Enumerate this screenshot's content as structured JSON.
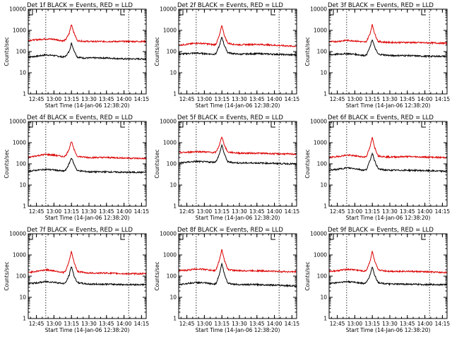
{
  "layout": {
    "rows": 3,
    "cols": 3
  },
  "common": {
    "ylabel": "Counts/sec",
    "xlabel": "Start Time (14-Jan-06 12:38:20)",
    "xticks": [
      "12:45",
      "13:00",
      "13:15",
      "13:30",
      "13:45",
      "14:00",
      "14:15"
    ],
    "yticks": [
      "1",
      "10",
      "100",
      "1000",
      "10000"
    ],
    "ylim": [
      1,
      10000
    ],
    "yscale": "log",
    "xlim": [
      "12:38",
      "14:19"
    ],
    "vlines": [
      "12:53",
      "14:04"
    ],
    "series_colors": {
      "Events": "#000000",
      "LLD": "#dd0000"
    }
  },
  "chart_data": [
    {
      "type": "line",
      "title": "Det 1f BLACK = Events, RED = LLD",
      "x": [
        "12:38",
        "12:45",
        "12:53",
        "13:00",
        "13:08",
        "13:10",
        "13:13",
        "13:15",
        "13:17",
        "13:20",
        "13:25",
        "13:30",
        "13:45",
        "14:00",
        "14:15",
        "14:19"
      ],
      "series": [
        {
          "name": "Events",
          "values": [
            55,
            60,
            70,
            65,
            55,
            60,
            100,
            250,
            120,
            55,
            50,
            50,
            50,
            45,
            45,
            45
          ]
        },
        {
          "name": "LLD",
          "values": [
            340,
            360,
            400,
            380,
            320,
            360,
            700,
            2000,
            800,
            330,
            310,
            300,
            300,
            300,
            300,
            300
          ]
        }
      ]
    },
    {
      "type": "line",
      "title": "Det 2f BLACK = Events, RED = LLD",
      "x": [
        "12:38",
        "12:45",
        "12:53",
        "13:00",
        "13:08",
        "13:10",
        "13:13",
        "13:15",
        "13:17",
        "13:20",
        "13:25",
        "13:30",
        "13:45",
        "14:00",
        "14:15",
        "14:19"
      ],
      "series": [
        {
          "name": "Events",
          "values": [
            75,
            80,
            85,
            80,
            75,
            80,
            200,
            500,
            200,
            90,
            80,
            75,
            80,
            75,
            70,
            70
          ]
        },
        {
          "name": "LLD",
          "values": [
            200,
            220,
            250,
            240,
            210,
            230,
            600,
            1800,
            600,
            250,
            220,
            210,
            220,
            200,
            180,
            180
          ]
        }
      ]
    },
    {
      "type": "line",
      "title": "Det 3f BLACK = Events, RED = LLD",
      "x": [
        "12:38",
        "12:45",
        "12:53",
        "13:00",
        "13:08",
        "13:10",
        "13:13",
        "13:15",
        "13:17",
        "13:20",
        "13:25",
        "13:30",
        "13:45",
        "14:00",
        "14:15",
        "14:19"
      ],
      "series": [
        {
          "name": "Events",
          "values": [
            70,
            75,
            80,
            75,
            65,
            70,
            160,
            380,
            160,
            75,
            70,
            65,
            65,
            60,
            60,
            60
          ]
        },
        {
          "name": "LLD",
          "values": [
            290,
            300,
            340,
            320,
            280,
            300,
            700,
            1900,
            700,
            300,
            280,
            270,
            270,
            260,
            250,
            250
          ]
        }
      ]
    },
    {
      "type": "line",
      "title": "Det 4f BLACK = Events, RED = LLD",
      "x": [
        "12:38",
        "12:45",
        "12:53",
        "13:00",
        "13:08",
        "13:10",
        "13:13",
        "13:15",
        "13:17",
        "13:20",
        "13:25",
        "13:30",
        "13:45",
        "14:00",
        "14:15",
        "14:19"
      ],
      "series": [
        {
          "name": "Events",
          "values": [
            45,
            50,
            55,
            52,
            45,
            50,
            100,
            200,
            100,
            48,
            45,
            42,
            42,
            40,
            40,
            40
          ]
        },
        {
          "name": "LLD",
          "values": [
            200,
            240,
            280,
            260,
            220,
            240,
            500,
            1200,
            500,
            230,
            210,
            200,
            200,
            190,
            180,
            180
          ]
        }
      ]
    },
    {
      "type": "line",
      "title": "Det 5f BLACK = Events, RED = LLD",
      "x": [
        "12:38",
        "12:45",
        "12:53",
        "13:00",
        "13:08",
        "13:10",
        "13:13",
        "13:15",
        "13:17",
        "13:20",
        "13:25",
        "13:30",
        "13:45",
        "14:00",
        "14:15",
        "14:19"
      ],
      "series": [
        {
          "name": "Events",
          "values": [
            110,
            120,
            130,
            125,
            120,
            130,
            300,
            800,
            300,
            125,
            115,
            110,
            110,
            105,
            100,
            100
          ]
        },
        {
          "name": "LLD",
          "values": [
            340,
            350,
            380,
            370,
            340,
            360,
            800,
            2000,
            800,
            360,
            340,
            320,
            320,
            300,
            290,
            290
          ]
        }
      ]
    },
    {
      "type": "line",
      "title": "Det 6f BLACK = Events, RED = LLD",
      "x": [
        "12:38",
        "12:45",
        "12:53",
        "13:00",
        "13:08",
        "13:10",
        "13:13",
        "13:15",
        "13:17",
        "13:20",
        "13:25",
        "13:30",
        "13:45",
        "14:00",
        "14:15",
        "14:19"
      ],
      "series": [
        {
          "name": "Events",
          "values": [
            50,
            55,
            65,
            60,
            50,
            55,
            140,
            330,
            140,
            58,
            52,
            50,
            50,
            48,
            45,
            45
          ]
        },
        {
          "name": "LLD",
          "values": [
            200,
            220,
            260,
            240,
            210,
            230,
            600,
            1800,
            600,
            240,
            220,
            210,
            220,
            210,
            200,
            200
          ]
        }
      ]
    },
    {
      "type": "line",
      "title": "Det 7f BLACK = Events, RED = LLD",
      "x": [
        "12:38",
        "12:45",
        "12:53",
        "13:00",
        "13:08",
        "13:10",
        "13:13",
        "13:15",
        "13:17",
        "13:20",
        "13:25",
        "13:30",
        "13:45",
        "14:00",
        "14:15",
        "14:19"
      ],
      "series": [
        {
          "name": "Events",
          "values": [
            45,
            48,
            55,
            52,
            45,
            48,
            110,
            300,
            110,
            50,
            45,
            42,
            42,
            40,
            40,
            40
          ]
        },
        {
          "name": "LLD",
          "values": [
            150,
            170,
            200,
            180,
            150,
            170,
            500,
            1500,
            500,
            170,
            150,
            140,
            140,
            130,
            130,
            130
          ]
        }
      ]
    },
    {
      "type": "line",
      "title": "Det 8f BLACK = Events, RED = LLD",
      "x": [
        "12:38",
        "12:45",
        "12:53",
        "13:00",
        "13:08",
        "13:10",
        "13:13",
        "13:15",
        "13:17",
        "13:20",
        "13:25",
        "13:30",
        "13:45",
        "14:00",
        "14:15",
        "14:19"
      ],
      "series": [
        {
          "name": "Events",
          "values": [
            40,
            45,
            50,
            48,
            42,
            45,
            130,
            400,
            130,
            48,
            42,
            40,
            40,
            38,
            35,
            35
          ]
        },
        {
          "name": "LLD",
          "values": [
            180,
            190,
            220,
            210,
            180,
            200,
            600,
            1800,
            600,
            210,
            190,
            180,
            180,
            170,
            160,
            160
          ]
        }
      ]
    },
    {
      "type": "line",
      "title": "Det 9f BLACK = Events, RED = LLD",
      "x": [
        "12:38",
        "12:45",
        "12:53",
        "13:00",
        "13:08",
        "13:10",
        "13:13",
        "13:15",
        "13:17",
        "13:20",
        "13:25",
        "13:30",
        "13:45",
        "14:00",
        "14:15",
        "14:19"
      ],
      "series": [
        {
          "name": "Events",
          "values": [
            45,
            50,
            55,
            52,
            45,
            50,
            110,
            280,
            110,
            50,
            45,
            42,
            42,
            40,
            40,
            40
          ]
        },
        {
          "name": "LLD",
          "values": [
            170,
            180,
            210,
            200,
            170,
            190,
            500,
            1500,
            500,
            200,
            180,
            170,
            170,
            160,
            150,
            150
          ]
        }
      ]
    }
  ]
}
